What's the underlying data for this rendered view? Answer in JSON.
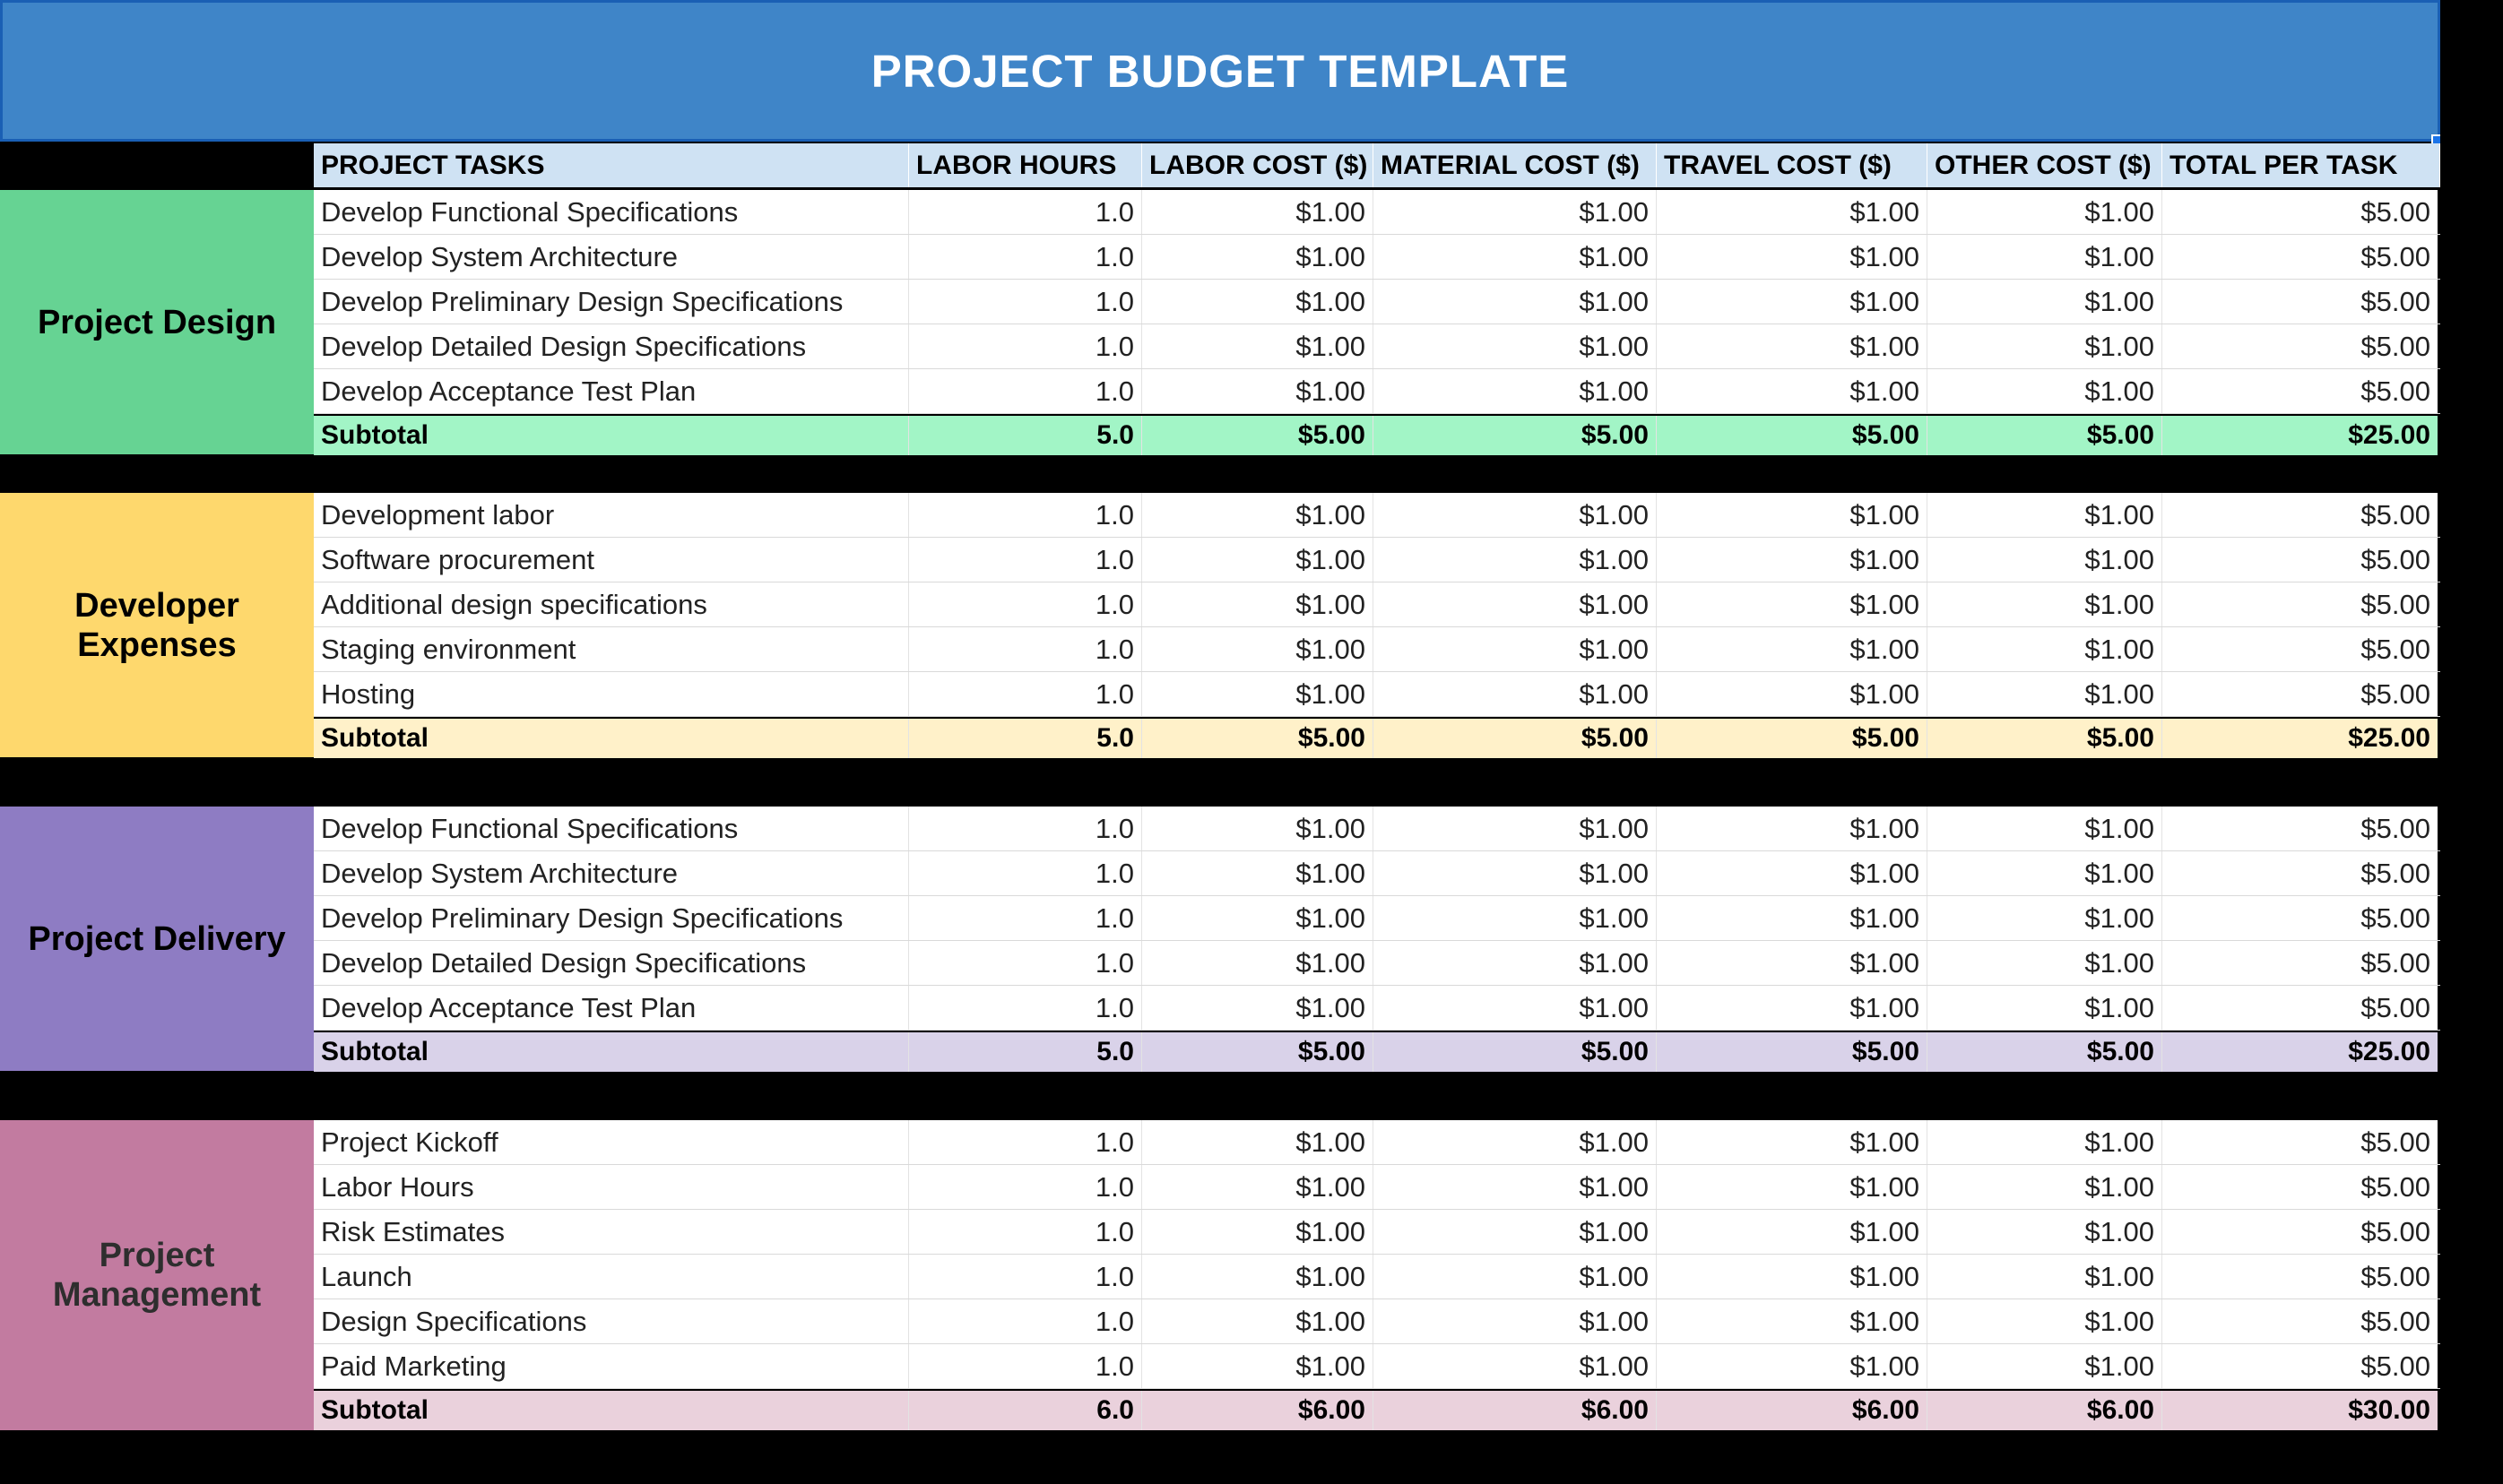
{
  "title": "PROJECT BUDGET TEMPLATE",
  "colors": {
    "title_bar": "#3f85c8",
    "header": "#cfe2f3",
    "project_design": "#66d393",
    "developer_expenses": "#fed86d",
    "project_delivery": "#8e7cc3",
    "project_management": "#c27ba0"
  },
  "headers": [
    "PROJECT TASKS",
    "LABOR HOURS",
    "LABOR COST ($)",
    "MATERIAL COST ($)",
    "TRAVEL COST ($)",
    "OTHER COST ($)",
    "TOTAL PER TASK"
  ],
  "sections": [
    {
      "name": "Project Design",
      "rows": [
        [
          "Develop Functional Specifications",
          "1.0",
          "$1.00",
          "$1.00",
          "$1.00",
          "$1.00",
          "$5.00"
        ],
        [
          "Develop System Architecture",
          "1.0",
          "$1.00",
          "$1.00",
          "$1.00",
          "$1.00",
          "$5.00"
        ],
        [
          "Develop Preliminary Design Specifications",
          "1.0",
          "$1.00",
          "$1.00",
          "$1.00",
          "$1.00",
          "$5.00"
        ],
        [
          "Develop Detailed Design Specifications",
          "1.0",
          "$1.00",
          "$1.00",
          "$1.00",
          "$1.00",
          "$5.00"
        ],
        [
          "Develop Acceptance Test Plan",
          "1.0",
          "$1.00",
          "$1.00",
          "$1.00",
          "$1.00",
          "$5.00"
        ]
      ],
      "subtotal": [
        "Subtotal",
        "5.0",
        "$5.00",
        "$5.00",
        "$5.00",
        "$5.00",
        "$25.00"
      ]
    },
    {
      "name": "Developer Expenses",
      "rows": [
        [
          "Development labor",
          "1.0",
          "$1.00",
          "$1.00",
          "$1.00",
          "$1.00",
          "$5.00"
        ],
        [
          "Software procurement",
          "1.0",
          "$1.00",
          "$1.00",
          "$1.00",
          "$1.00",
          "$5.00"
        ],
        [
          "Additional design specifications",
          "1.0",
          "$1.00",
          "$1.00",
          "$1.00",
          "$1.00",
          "$5.00"
        ],
        [
          "Staging environment",
          "1.0",
          "$1.00",
          "$1.00",
          "$1.00",
          "$1.00",
          "$5.00"
        ],
        [
          "Hosting",
          "1.0",
          "$1.00",
          "$1.00",
          "$1.00",
          "$1.00",
          "$5.00"
        ]
      ],
      "subtotal": [
        "Subtotal",
        "5.0",
        "$5.00",
        "$5.00",
        "$5.00",
        "$5.00",
        "$25.00"
      ]
    },
    {
      "name": "Project Delivery",
      "rows": [
        [
          "Develop Functional Specifications",
          "1.0",
          "$1.00",
          "$1.00",
          "$1.00",
          "$1.00",
          "$5.00"
        ],
        [
          "Develop System Architecture",
          "1.0",
          "$1.00",
          "$1.00",
          "$1.00",
          "$1.00",
          "$5.00"
        ],
        [
          "Develop Preliminary Design Specifications",
          "1.0",
          "$1.00",
          "$1.00",
          "$1.00",
          "$1.00",
          "$5.00"
        ],
        [
          "Develop Detailed Design Specifications",
          "1.0",
          "$1.00",
          "$1.00",
          "$1.00",
          "$1.00",
          "$5.00"
        ],
        [
          "Develop Acceptance Test Plan",
          "1.0",
          "$1.00",
          "$1.00",
          "$1.00",
          "$1.00",
          "$5.00"
        ]
      ],
      "subtotal": [
        "Subtotal",
        "5.0",
        "$5.00",
        "$5.00",
        "$5.00",
        "$5.00",
        "$25.00"
      ]
    },
    {
      "name": "Project Management",
      "rows": [
        [
          "Project Kickoff",
          "1.0",
          "$1.00",
          "$1.00",
          "$1.00",
          "$1.00",
          "$5.00"
        ],
        [
          "Labor Hours",
          "1.0",
          "$1.00",
          "$1.00",
          "$1.00",
          "$1.00",
          "$5.00"
        ],
        [
          "Risk Estimates",
          "1.0",
          "$1.00",
          "$1.00",
          "$1.00",
          "$1.00",
          "$5.00"
        ],
        [
          "Launch",
          "1.0",
          "$1.00",
          "$1.00",
          "$1.00",
          "$1.00",
          "$5.00"
        ],
        [
          "Design Specifications",
          "1.0",
          "$1.00",
          "$1.00",
          "$1.00",
          "$1.00",
          "$5.00"
        ],
        [
          "Paid Marketing",
          "1.0",
          "$1.00",
          "$1.00",
          "$1.00",
          "$1.00",
          "$5.00"
        ]
      ],
      "subtotal": [
        "Subtotal",
        "6.0",
        "$6.00",
        "$6.00",
        "$6.00",
        "$6.00",
        "$30.00"
      ]
    }
  ]
}
